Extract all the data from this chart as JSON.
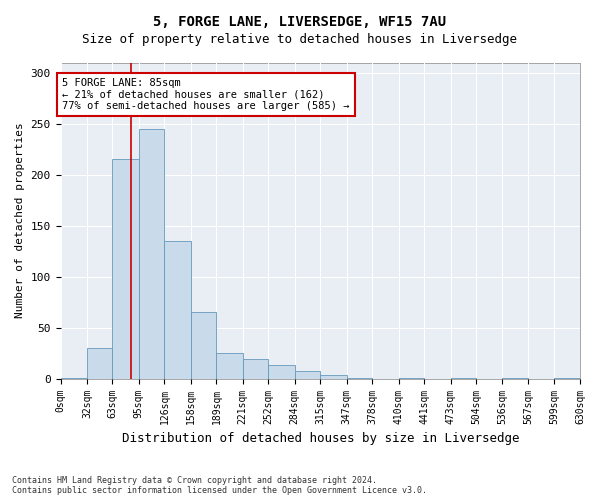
{
  "title": "5, FORGE LANE, LIVERSEDGE, WF15 7AU",
  "subtitle": "Size of property relative to detached houses in Liversedge",
  "xlabel": "Distribution of detached houses by size in Liversedge",
  "ylabel": "Number of detached properties",
  "bin_edges": [
    0,
    32,
    63,
    95,
    126,
    158,
    189,
    221,
    252,
    284,
    315,
    347,
    378,
    410,
    441,
    473,
    504,
    536,
    567,
    599,
    630
  ],
  "bar_heights": [
    1,
    30,
    215,
    245,
    135,
    65,
    25,
    19,
    13,
    8,
    4,
    1,
    0,
    1,
    0,
    1,
    0,
    1,
    0,
    1
  ],
  "bar_color": "#c9daea",
  "bar_edge_color": "#6699bb",
  "property_line_x": 85,
  "property_line_color": "#cc0000",
  "annotation_text": "5 FORGE LANE: 85sqm\n← 21% of detached houses are smaller (162)\n77% of semi-detached houses are larger (585) →",
  "annotation_box_color": "#ffffff",
  "annotation_box_edge_color": "#cc0000",
  "ylim": [
    0,
    310
  ],
  "xlim": [
    0,
    630
  ],
  "plot_bg_color": "#e8eef4",
  "fig_bg_color": "#ffffff",
  "grid_color": "#ffffff",
  "title_fontsize": 10,
  "subtitle_fontsize": 9,
  "axis_label_fontsize": 8,
  "tick_fontsize": 7,
  "footer_text": "Contains HM Land Registry data © Crown copyright and database right 2024.\nContains public sector information licensed under the Open Government Licence v3.0."
}
